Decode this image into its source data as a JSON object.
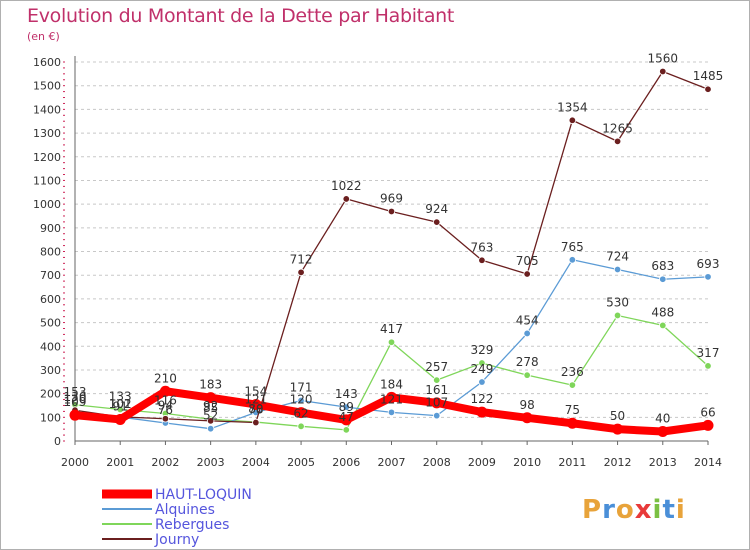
{
  "title": "Evolution du Montant de la Dette par Habitant",
  "subtitle": "(en €)",
  "watermark": "Proxiti",
  "chart_data": {
    "type": "line",
    "title": "Evolution du Montant de la Dette par Habitant",
    "subtitle": "(en €)",
    "xlabel": "",
    "ylabel": "",
    "x": [
      2000,
      2001,
      2002,
      2003,
      2004,
      2005,
      2006,
      2007,
      2008,
      2009,
      2010,
      2011,
      2012,
      2013,
      2014
    ],
    "ylim": [
      0,
      1600
    ],
    "yticks": [
      0,
      100,
      200,
      300,
      400,
      500,
      600,
      700,
      800,
      900,
      1000,
      1100,
      1200,
      1300,
      1400,
      1500,
      1600
    ],
    "grid": "horizontal-dashed",
    "legend": "bottom-left",
    "series": [
      {
        "name": "HAUT-LOQUIN",
        "color": "#ff0000",
        "values": [
          109,
          91,
          210,
          183,
          154,
          120,
          89,
          184,
          161,
          122,
          98,
          75,
          50,
          40,
          66
        ]
      },
      {
        "name": "Alquines",
        "color": "#5b9bd5",
        "values": [
          120,
          101,
          76,
          52,
          121,
          171,
          143,
          121,
          107,
          249,
          454,
          765,
          724,
          683,
          693
        ]
      },
      {
        "name": "Rebergues",
        "color": "#7fd65a",
        "values": [
          153,
          133,
          116,
          92,
          80,
          62,
          47,
          417,
          257,
          329,
          278,
          236,
          530,
          488,
          317
        ]
      },
      {
        "name": "Journy",
        "color": "#6b1f1f",
        "values": [
          130,
          102,
          94,
          85,
          78,
          712,
          1022,
          969,
          924,
          763,
          705,
          1354,
          1265,
          1560,
          1485
        ]
      }
    ]
  }
}
